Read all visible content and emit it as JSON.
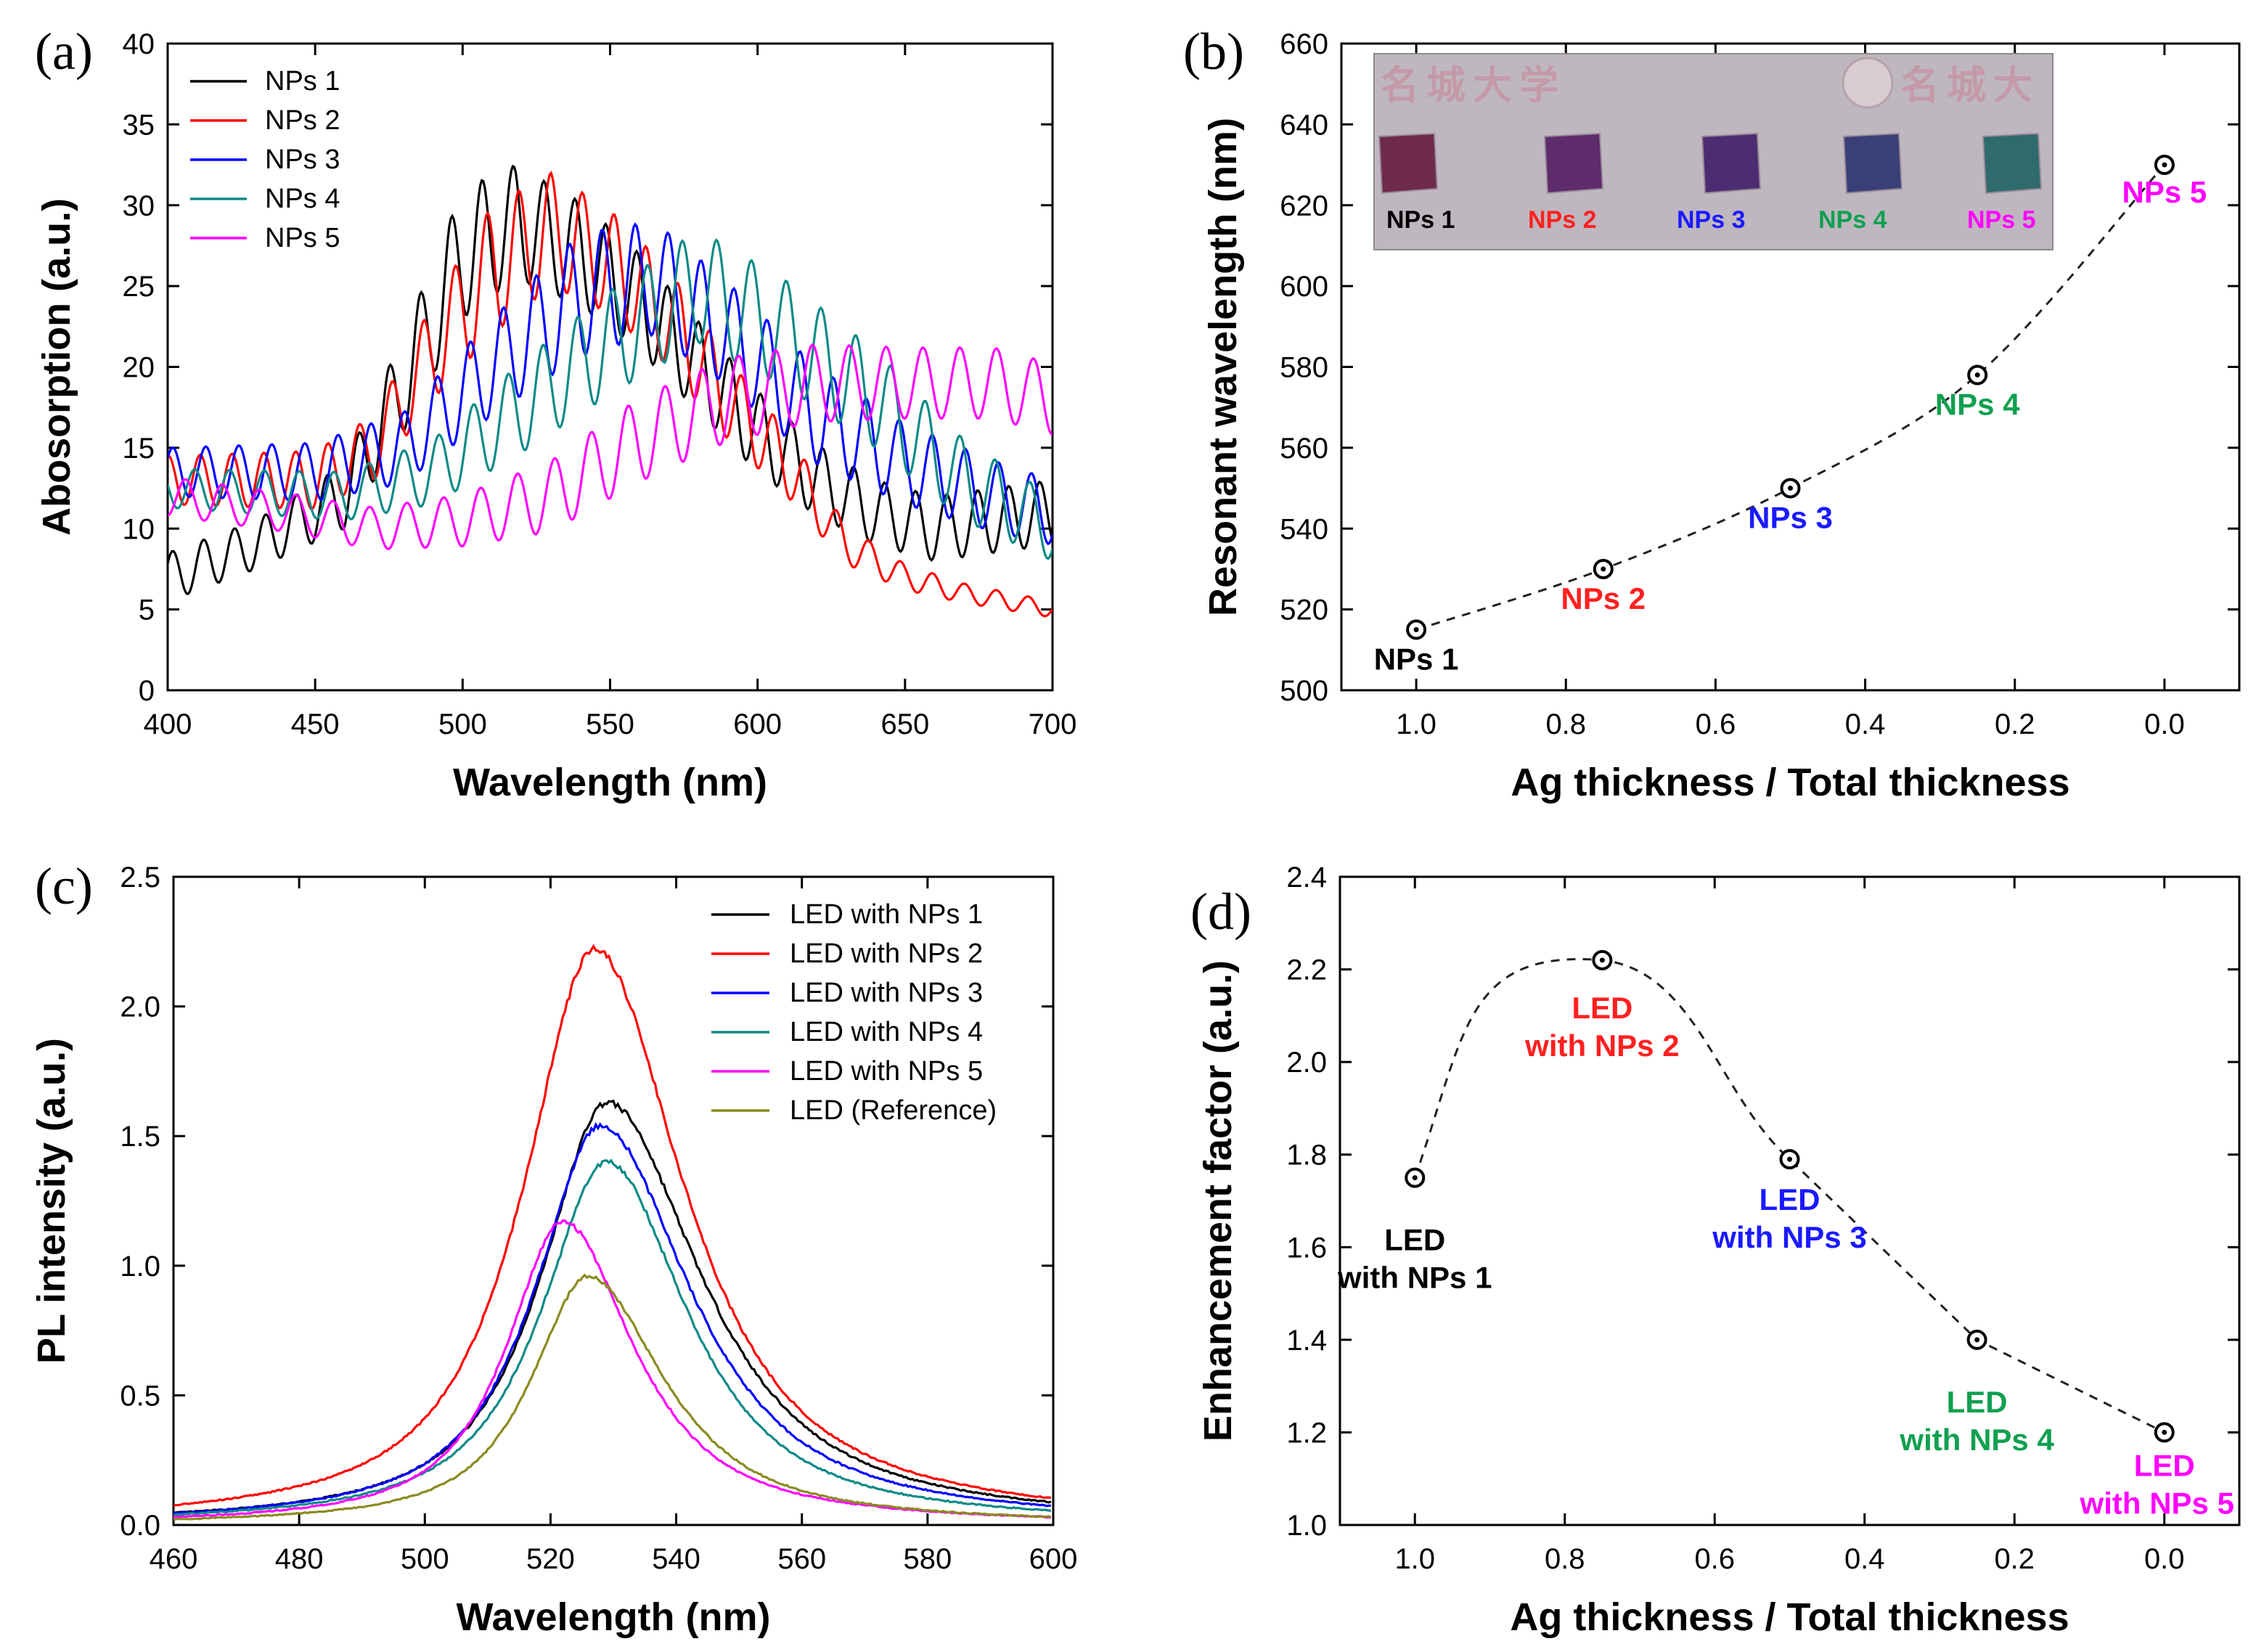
{
  "chart_data": [
    {
      "panel": "(a)",
      "type": "line",
      "xlabel": "Wavelength (nm)",
      "ylabel": "Abosorption (a.u.)",
      "xlim": [
        400,
        700
      ],
      "ylim": [
        0,
        40
      ],
      "xticks": [
        400,
        450,
        500,
        550,
        600,
        650,
        700
      ],
      "yticks": [
        0,
        5,
        10,
        15,
        20,
        25,
        30,
        35,
        40
      ],
      "legend_position": "top-left",
      "series": [
        {
          "name": "NPs 1",
          "color": "#000000",
          "period": 10.5,
          "phase": 0,
          "x": [
            400,
            430,
            460,
            480,
            500,
            518,
            540,
            560,
            580,
            600,
            620,
            640,
            660,
            680,
            700
          ],
          "env": [
            7,
            9,
            12,
            19,
            27,
            29,
            27,
            24,
            20,
            16,
            13,
            11,
            10,
            10.5,
            11
          ],
          "amp": [
            1.5,
            1.5,
            2,
            3,
            4,
            3.5,
            3.2,
            3,
            2.8,
            2.5,
            2.2,
            2,
            2,
            2,
            2
          ]
        },
        {
          "name": "NPs 2",
          "color": "#ff0000",
          "period": 10.8,
          "phase": 1.2,
          "x": [
            400,
            450,
            470,
            490,
            510,
            530,
            550,
            570,
            590,
            610,
            630,
            650,
            670,
            700
          ],
          "env": [
            13,
            13,
            15,
            21,
            26,
            28.5,
            26.5,
            23,
            18,
            14,
            9,
            7,
            6,
            5
          ],
          "amp": [
            1.5,
            1.8,
            2,
            3,
            4,
            3.5,
            3.2,
            3,
            2.5,
            2,
            1.2,
            0.8,
            0.6,
            0.5
          ]
        },
        {
          "name": "NPs 3",
          "color": "#0000ff",
          "period": 11.2,
          "phase": 2.4,
          "x": [
            400,
            450,
            480,
            510,
            540,
            565,
            590,
            620,
            650,
            680,
            700
          ],
          "env": [
            13.5,
            13.5,
            15,
            20,
            24.5,
            25.5,
            22,
            17,
            14,
            12,
            11
          ],
          "amp": [
            1.5,
            1.8,
            2.2,
            3,
            3.8,
            3.5,
            3.2,
            3,
            2.5,
            2.2,
            2
          ]
        },
        {
          "name": "NPs 4",
          "color": "#0e8a88",
          "period": 11.8,
          "phase": 3.6,
          "x": [
            400,
            460,
            490,
            520,
            550,
            580,
            610,
            640,
            670,
            700
          ],
          "env": [
            12.5,
            12,
            13.5,
            17.5,
            21.5,
            25,
            22,
            18,
            13,
            10
          ],
          "amp": [
            1.2,
            1.5,
            2,
            2.8,
            3.2,
            3.5,
            3.3,
            3,
            2.5,
            2
          ]
        },
        {
          "name": "NPs 5",
          "color": "#ff00ff",
          "period": 12.5,
          "phase": 4.8,
          "x": [
            400,
            440,
            470,
            500,
            530,
            560,
            590,
            620,
            650,
            680,
            700
          ],
          "env": [
            12,
            11,
            10,
            10.5,
            12,
            15.5,
            18,
            19,
            19,
            19,
            18
          ],
          "amp": [
            1.2,
            1.2,
            1.3,
            1.6,
            2.2,
            2.6,
            2.6,
            2.4,
            2.2,
            2.2,
            2.2
          ]
        }
      ]
    },
    {
      "panel": "(b)",
      "type": "scatter",
      "xlabel": "Ag thickness / Total thickness",
      "ylabel": "Resonant wavelength (nm)",
      "xlim": [
        1.1,
        -0.1
      ],
      "ylim": [
        500,
        660
      ],
      "xticks": [
        1.0,
        0.8,
        0.6,
        0.4,
        0.2,
        0.0
      ],
      "yticks": [
        500,
        520,
        540,
        560,
        580,
        600,
        620,
        640,
        660
      ],
      "points": [
        {
          "x": 1.0,
          "y": 515,
          "label": "NPs 1",
          "color": "#000000"
        },
        {
          "x": 0.75,
          "y": 530,
          "label": "NPs 2",
          "color": "#ff2020"
        },
        {
          "x": 0.5,
          "y": 550,
          "label": "NPs 3",
          "color": "#1a1aff"
        },
        {
          "x": 0.25,
          "y": 578,
          "label": "NPs 4",
          "color": "#10a050"
        },
        {
          "x": 0.0,
          "y": 630,
          "label": "NPs 5",
          "color": "#ff00ff"
        }
      ],
      "inset_photo": {
        "stamp_text": "名城大学",
        "stamp_text_right": "名城大",
        "sample_labels": [
          "NPs 1",
          "NPs 2",
          "NPs 3",
          "NPs 4",
          "NPs 5"
        ],
        "sample_label_colors": [
          "#000000",
          "#ff2020",
          "#1a1aff",
          "#10a050",
          "#ff00ff"
        ],
        "sample_colors": [
          "#6e2a4c",
          "#5e2b6b",
          "#4c2d72",
          "#3a3f78",
          "#2f6b6c"
        ],
        "background": "#bfb7bf"
      }
    },
    {
      "panel": "(c)",
      "type": "line",
      "xlabel": "Wavelength (nm)",
      "ylabel": "PL intensity (a.u.)",
      "xlim": [
        460,
        600
      ],
      "ylim": [
        0,
        2.5
      ],
      "xticks": [
        460,
        480,
        500,
        520,
        540,
        560,
        580,
        600
      ],
      "yticks": [
        0.0,
        0.5,
        1.0,
        1.5,
        2.0,
        2.5
      ],
      "legend_position": "top-right",
      "series": [
        {
          "name": "LED with NPs 1",
          "color": "#000000",
          "peak": 1.63,
          "center": 529,
          "wl": 14,
          "wr": 20
        },
        {
          "name": "LED with NPs 2",
          "color": "#ff0000",
          "peak": 2.22,
          "center": 527,
          "wl": 15,
          "wr": 19
        },
        {
          "name": "LED with NPs 3",
          "color": "#0000ff",
          "peak": 1.54,
          "center": 528,
          "wl": 14,
          "wr": 19
        },
        {
          "name": "LED with NPs 4",
          "color": "#0e8a88",
          "peak": 1.4,
          "center": 529,
          "wl": 14,
          "wr": 17
        },
        {
          "name": "LED with NPs 5",
          "color": "#ff00ff",
          "peak": 1.17,
          "center": 522,
          "wl": 12,
          "wr": 15
        },
        {
          "name": "LED (Reference)",
          "color": "#8c8a20",
          "peak": 0.96,
          "center": 526,
          "wl": 12,
          "wr": 16
        }
      ]
    },
    {
      "panel": "(d)",
      "type": "scatter",
      "xlabel": "Ag thickness / Total thickness",
      "ylabel": "Enhancement factor (a.u.)",
      "xlim": [
        1.1,
        -0.1
      ],
      "ylim": [
        1.0,
        2.4
      ],
      "xticks": [
        1.0,
        0.8,
        0.6,
        0.4,
        0.2,
        0.0
      ],
      "yticks": [
        1.0,
        1.2,
        1.4,
        1.6,
        1.8,
        2.0,
        2.2,
        2.4
      ],
      "points": [
        {
          "x": 1.0,
          "y": 1.75,
          "label1": "LED",
          "label2": "with NPs 1",
          "color": "#000000"
        },
        {
          "x": 0.75,
          "y": 2.22,
          "label1": "LED",
          "label2": "with NPs 2",
          "color": "#ff2020"
        },
        {
          "x": 0.5,
          "y": 1.79,
          "label1": "LED",
          "label2": "with NPs 3",
          "color": "#1a1aff"
        },
        {
          "x": 0.25,
          "y": 1.4,
          "label1": "LED",
          "label2": "with NPs 4",
          "color": "#10a050"
        },
        {
          "x": 0.0,
          "y": 1.2,
          "label1": "LED",
          "label2": "with NPs 5",
          "color": "#ff00ff"
        }
      ]
    }
  ]
}
